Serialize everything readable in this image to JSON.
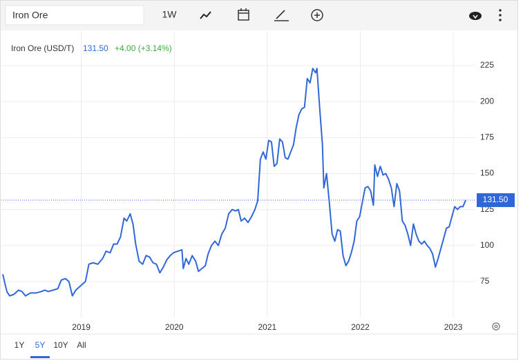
{
  "toolbar": {
    "search": "Iron Ore",
    "interval": "1W"
  },
  "ranges": [
    {
      "label": "1Y",
      "active": false
    },
    {
      "label": "5Y",
      "active": true
    },
    {
      "label": "10Y",
      "active": false
    },
    {
      "label": "All",
      "active": false
    }
  ],
  "chart_data": {
    "type": "line",
    "title": "Iron Ore (USD/T)",
    "last": {
      "value": 131.5,
      "label": "131.50"
    },
    "change": "+4.00 (+3.14%)",
    "color": "#2f67d8",
    "grid": true,
    "xlim": [
      2018.141,
      2023.237
    ],
    "xticks": [
      2019,
      2020,
      2021,
      2022,
      2023
    ],
    "ylim": [
      50,
      249
    ],
    "yticks": [
      75,
      100,
      125,
      150,
      175,
      200,
      225
    ],
    "x": [
      2018.156,
      2018.2,
      2018.23,
      2018.274,
      2018.326,
      2018.363,
      2018.4,
      2018.452,
      2018.511,
      2018.571,
      2018.608,
      2018.645,
      2018.697,
      2018.748,
      2018.785,
      2018.83,
      2018.867,
      2018.904,
      2018.941,
      2018.993,
      2019.045,
      2019.082,
      2019.126,
      2019.178,
      2019.23,
      2019.267,
      2019.311,
      2019.348,
      2019.385,
      2019.422,
      2019.46,
      2019.489,
      2019.526,
      2019.556,
      2019.585,
      2019.622,
      2019.66,
      2019.697,
      2019.734,
      2019.771,
      2019.808,
      2019.845,
      2019.882,
      2019.919,
      2019.956,
      2019.993,
      2020.037,
      2020.082,
      2020.097,
      2020.126,
      2020.156,
      2020.193,
      2020.23,
      2020.26,
      2020.297,
      2020.334,
      2020.363,
      2020.4,
      2020.437,
      2020.474,
      2020.511,
      2020.548,
      2020.585,
      2020.622,
      2020.66,
      2020.689,
      2020.719,
      2020.756,
      2020.793,
      2020.83,
      2020.867,
      2020.897,
      2020.926,
      2020.956,
      2020.985,
      2021.015,
      2021.045,
      2021.074,
      2021.104,
      2021.134,
      2021.163,
      2021.193,
      2021.222,
      2021.252,
      2021.282,
      2021.311,
      2021.341,
      2021.371,
      2021.4,
      2021.43,
      2021.46,
      2021.489,
      2021.519,
      2021.534,
      2021.563,
      2021.593,
      2021.608,
      2021.637,
      2021.667,
      2021.697,
      2021.726,
      2021.756,
      2021.785,
      2021.815,
      2021.845,
      2021.874,
      2021.904,
      2021.934,
      2021.963,
      2021.993,
      2022.022,
      2022.052,
      2022.082,
      2022.111,
      2022.141,
      2022.156,
      2022.185,
      2022.215,
      2022.245,
      2022.274,
      2022.304,
      2022.334,
      2022.363,
      2022.393,
      2022.422,
      2022.452,
      2022.482,
      2022.511,
      2022.541,
      2022.571,
      2022.6,
      2022.63,
      2022.66,
      2022.689,
      2022.719,
      2022.748,
      2022.778,
      2022.808,
      2022.837,
      2022.867,
      2022.897,
      2022.926,
      2022.956,
      2022.985,
      2023.015,
      2023.045,
      2023.074,
      2023.104,
      2023.134
    ],
    "values": [
      80,
      68,
      65,
      66,
      69,
      68,
      65,
      67,
      67,
      68,
      69,
      68,
      69,
      70,
      76,
      77,
      75,
      65,
      69,
      72,
      75,
      87,
      88,
      87,
      91,
      96,
      95,
      101,
      101,
      106,
      119,
      117,
      122,
      115,
      101,
      89,
      87,
      93,
      92,
      88,
      87,
      81,
      85,
      90,
      93,
      95,
      96,
      97,
      84,
      91,
      87,
      93,
      89,
      82,
      84,
      86,
      94,
      100,
      103,
      100,
      108,
      112,
      122,
      125,
      124,
      125,
      117,
      119,
      116,
      120,
      125,
      131,
      160,
      165,
      160,
      173,
      172,
      155,
      157,
      174,
      172,
      161,
      160,
      165,
      170,
      182,
      191,
      195,
      196,
      216,
      213,
      223,
      220,
      223,
      196,
      170,
      140,
      150,
      130,
      108,
      103,
      111,
      110,
      93,
      86,
      89,
      95,
      103,
      117,
      120,
      130,
      140,
      141,
      138,
      128,
      156,
      148,
      155,
      149,
      150,
      146,
      140,
      127,
      143,
      138,
      117,
      114,
      108,
      100,
      115,
      108,
      103,
      101,
      103,
      100,
      98,
      94,
      85,
      91,
      98,
      105,
      112,
      113,
      120,
      127,
      125,
      127,
      127,
      131.5
    ]
  }
}
